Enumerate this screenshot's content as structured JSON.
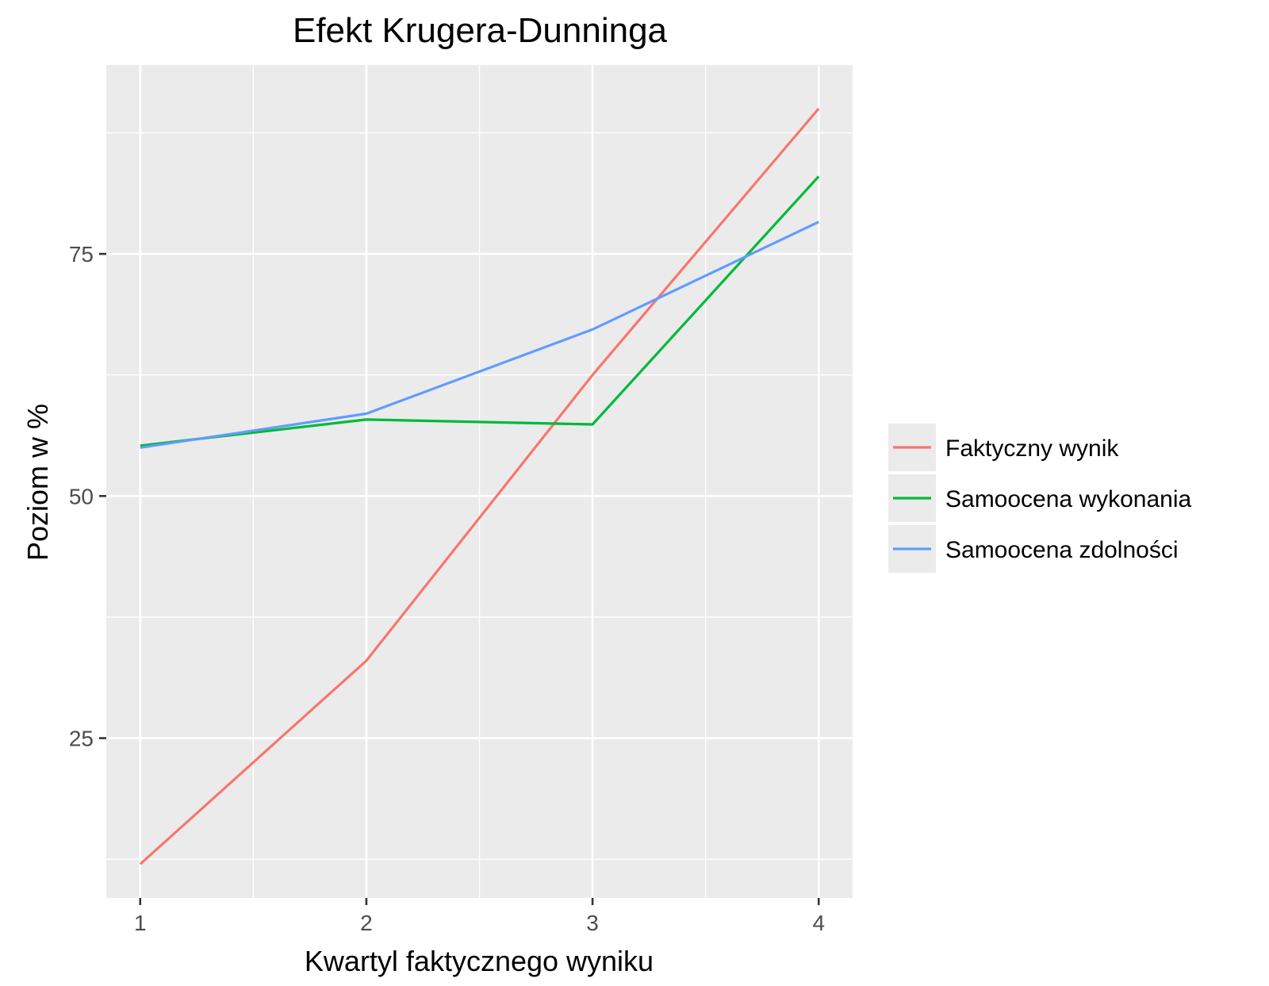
{
  "chart_data": {
    "type": "line",
    "title": "Efekt Krugera-Dunninga",
    "xlabel": "Kwartyl faktycznego wyniku",
    "ylabel": "Poziom w %",
    "x": [
      1,
      2,
      3,
      4
    ],
    "x_tick_labels": [
      "1",
      "2",
      "3",
      "4"
    ],
    "y_ticks": [
      25,
      50,
      75
    ],
    "y_tick_labels": [
      "25",
      "50",
      "75"
    ],
    "xlim": [
      0.85,
      4.15
    ],
    "ylim": [
      8.5,
      94.5
    ],
    "grid": true,
    "legend_position": "right",
    "series": [
      {
        "name": "Faktyczny wynik",
        "color": "#F8766D",
        "values": [
          12,
          33,
          62.5,
          90
        ]
      },
      {
        "name": "Samoocena wykonania",
        "color": "#00BA38",
        "values": [
          55.2,
          57.9,
          57.4,
          83
        ]
      },
      {
        "name": "Samoocena zdolności",
        "color": "#619CFF",
        "values": [
          55,
          58.5,
          67.2,
          78.3
        ]
      }
    ]
  }
}
